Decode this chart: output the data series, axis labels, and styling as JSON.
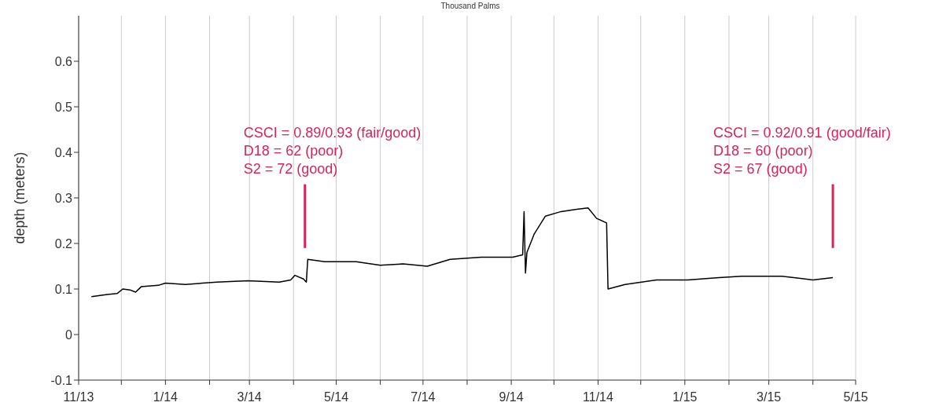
{
  "chart_data": {
    "type": "line",
    "title": "Thousand Palms",
    "ylabel": "depth (meters)",
    "x": [
      "2013-11-10",
      "2013-11-21",
      "2013-11-28",
      "2013-12-02",
      "2013-12-07",
      "2013-12-11",
      "2013-12-15",
      "2013-12-27",
      "2014-01-01",
      "2014-01-15",
      "2014-02-06",
      "2014-02-28",
      "2014-03-22",
      "2014-03-30",
      "2014-04-02",
      "2014-04-08",
      "2014-04-10",
      "2014-04-11",
      "2014-04-23",
      "2014-05-15",
      "2014-06-01",
      "2014-06-17",
      "2014-07-04",
      "2014-07-20",
      "2014-08-11",
      "2014-09-02",
      "2014-09-09",
      "2014-09-10",
      "2014-09-11",
      "2014-09-12",
      "2014-09-17",
      "2014-09-25",
      "2014-10-06",
      "2014-10-17",
      "2014-10-25",
      "2014-10-31",
      "2014-11-07",
      "2014-11-08",
      "2014-11-20",
      "2014-12-12",
      "2015-01-03",
      "2015-01-25",
      "2015-02-10",
      "2015-03-10",
      "2015-04-01",
      "2015-04-15"
    ],
    "series": [
      {
        "type": "line",
        "color": "#d6245a",
        "x": [
          "2014-04-09",
          "2014-04-09"
        ],
        "values": [
          0.19,
          0.33
        ]
      },
      {
        "type": "line",
        "color": "#d6245a",
        "x": [
          "2015-04-15",
          "2015-04-15"
        ],
        "values": [
          0.19,
          0.33
        ]
      },
      {
        "color": "#000000",
        "values": [
          0.083,
          0.088,
          0.09,
          0.1,
          0.098,
          0.093,
          0.105,
          0.108,
          0.113,
          0.11,
          0.115,
          0.118,
          0.115,
          0.12,
          0.13,
          0.122,
          0.115,
          0.165,
          0.16,
          0.16,
          0.152,
          0.155,
          0.15,
          0.165,
          0.17,
          0.17,
          0.175,
          0.27,
          0.135,
          0.18,
          0.22,
          0.26,
          0.27,
          0.275,
          0.278,
          0.255,
          0.245,
          0.1,
          0.11,
          0.12,
          0.12,
          0.125,
          0.128,
          0.128,
          0.12,
          0.125
        ]
      }
    ],
    "xlim": [
      "2013-11-01",
      "2015-05-01"
    ],
    "xticks": [
      {
        "value": "2013-11-01",
        "label": "11/13"
      },
      {
        "value": "2013-12-01",
        "label": null
      },
      {
        "value": "2014-01-01",
        "label": "1/14"
      },
      {
        "value": "2014-02-01",
        "label": null
      },
      {
        "value": "2014-03-01",
        "label": "3/14"
      },
      {
        "value": "2014-04-01",
        "label": null
      },
      {
        "value": "2014-05-01",
        "label": "5/14"
      },
      {
        "value": "2014-06-01",
        "label": null
      },
      {
        "value": "2014-07-01",
        "label": "7/14"
      },
      {
        "value": "2014-08-01",
        "label": null
      },
      {
        "value": "2014-09-01",
        "label": "9/14"
      },
      {
        "value": "2014-10-01",
        "label": null
      },
      {
        "value": "2014-11-01",
        "label": "11/14"
      },
      {
        "value": "2014-12-01",
        "label": null
      },
      {
        "value": "2015-01-01",
        "label": "1/15"
      },
      {
        "value": "2015-02-01",
        "label": null
      },
      {
        "value": "2015-03-01",
        "label": "3/15"
      },
      {
        "value": "2015-04-01",
        "label": null
      },
      {
        "value": "2015-05-01",
        "label": "5/15"
      }
    ],
    "ylim": [
      -0.1,
      0.7
    ],
    "yticks": [
      -0.1,
      0,
      0.1,
      0.2,
      0.3,
      0.4,
      0.5,
      0.6
    ],
    "grid": "x",
    "legend": false,
    "marker": "none",
    "line_style": "solid",
    "annotations": [
      "CSCI = 0.89/0.93 (fair/good)\nD18 = 62 (poor)\nS2 = 72 (good)",
      "CSCI = 0.92/0.91 (good/fair)\nD18 = 60 (poor)\nS2 = 67 (good)"
    ]
  }
}
